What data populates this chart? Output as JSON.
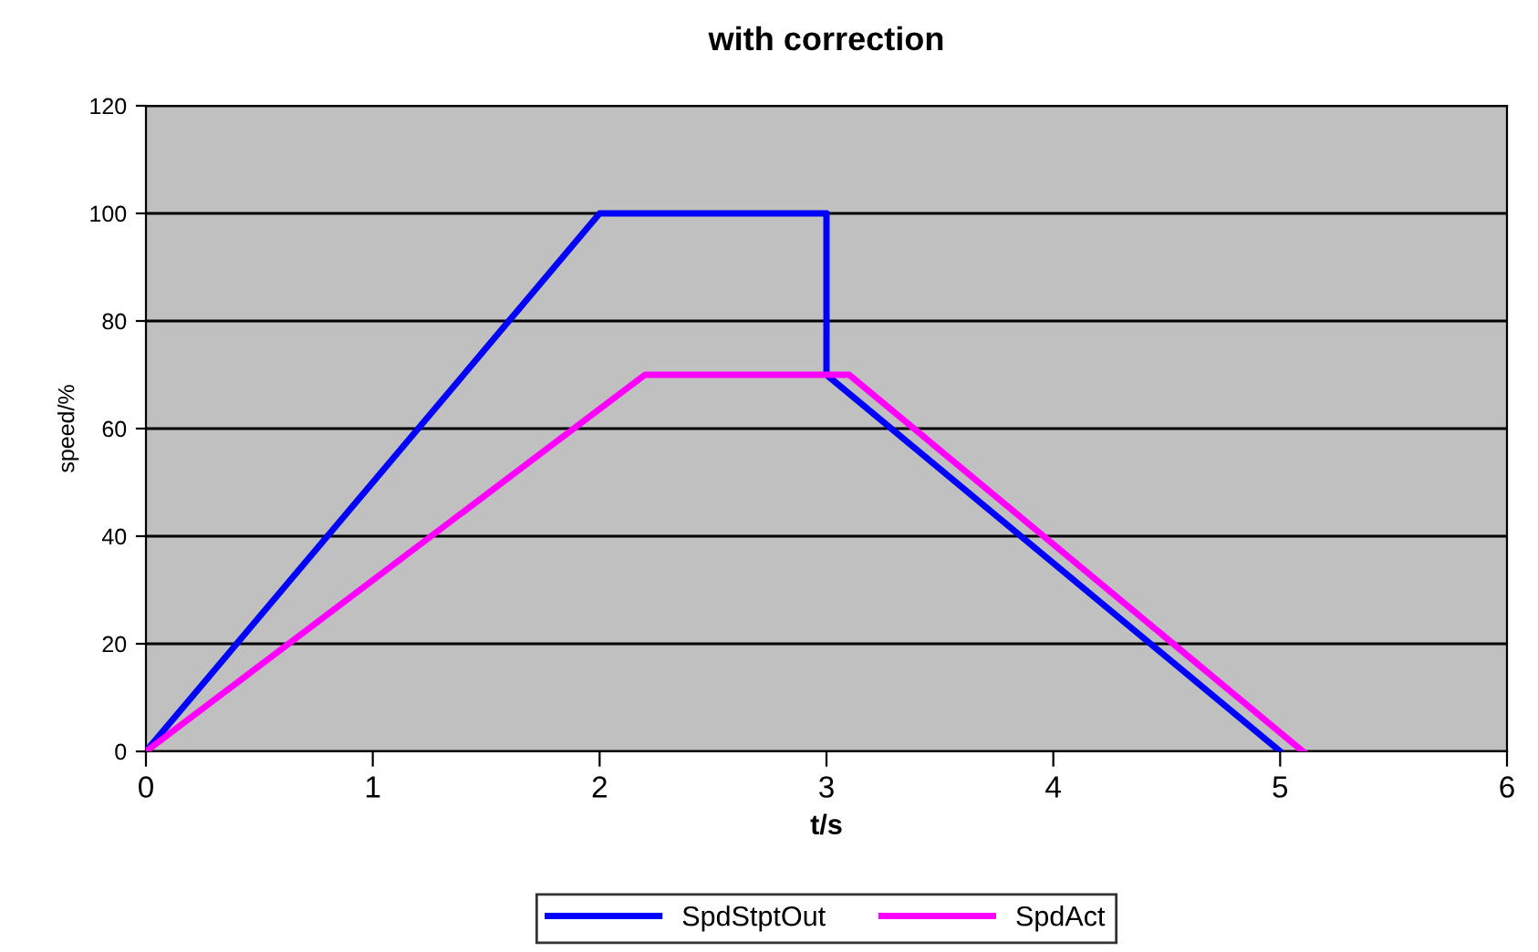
{
  "chart_data": {
    "type": "line",
    "title": "with correction",
    "xlabel": "t/s",
    "ylabel": "speed/%",
    "xlim": [
      0,
      6
    ],
    "xticks": [
      0,
      1,
      2,
      3,
      4,
      5,
      6
    ],
    "ylim": [
      0,
      120
    ],
    "yticks": [
      0,
      20,
      40,
      60,
      80,
      100,
      120
    ],
    "grid": "y",
    "legend": "bottom",
    "line_style": "solid",
    "marker": "none",
    "series": [
      {
        "name": "SpdStptOut",
        "color": "#0000ff",
        "x": [
          0,
          2,
          3,
          3,
          5
        ],
        "values": [
          0,
          100,
          100,
          70,
          0
        ]
      },
      {
        "name": "SpdAct",
        "color": "#ff00ff",
        "x": [
          0,
          2.2,
          3.1,
          5.1
        ],
        "values": [
          0,
          70,
          70,
          0
        ]
      }
    ]
  }
}
